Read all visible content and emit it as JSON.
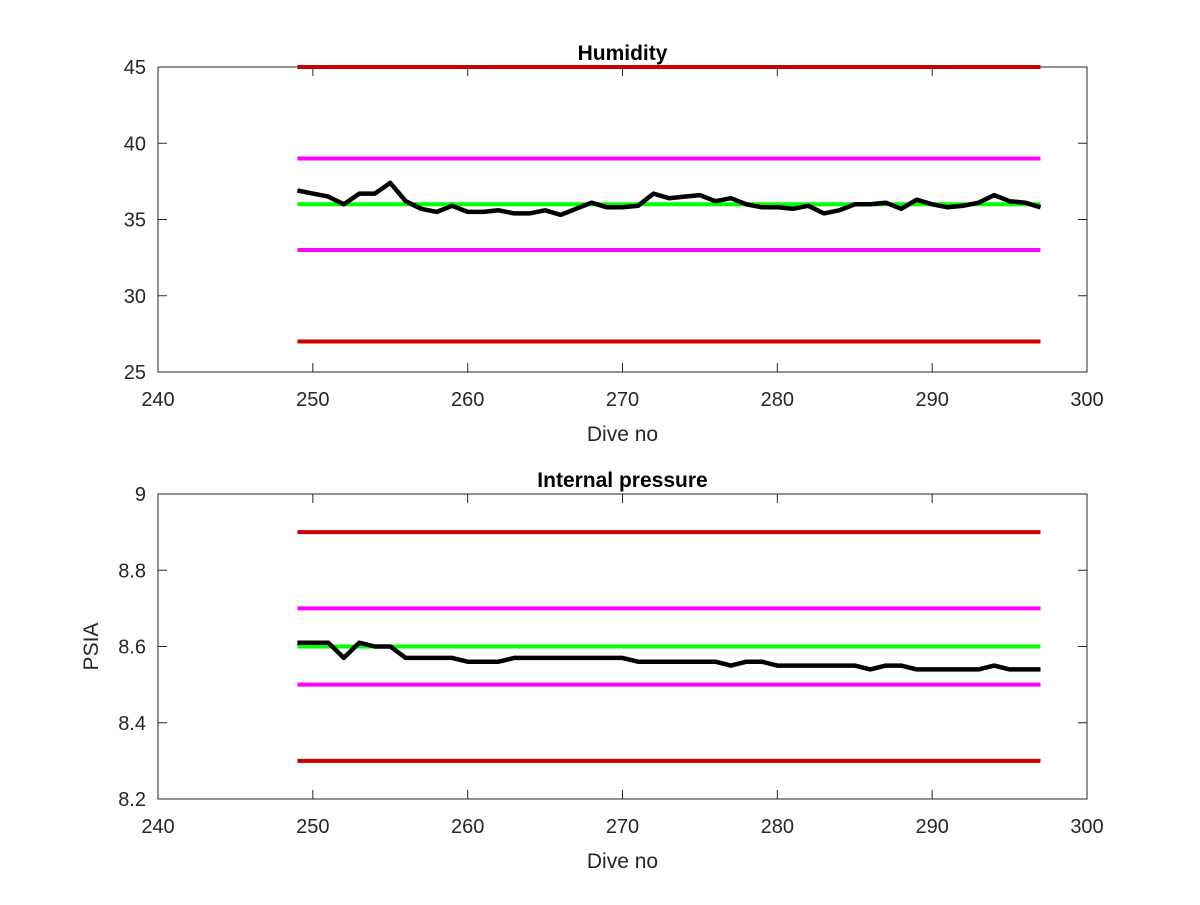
{
  "chart_data": [
    {
      "type": "line",
      "title": "Humidity",
      "xlabel": "Dive no",
      "ylabel": "",
      "xlim": [
        240,
        300
      ],
      "ylim": [
        25,
        45
      ],
      "xticks": [
        240,
        250,
        260,
        270,
        280,
        290,
        300
      ],
      "yticks": [
        25,
        30,
        35,
        40,
        45
      ],
      "grid": false,
      "legend": "none",
      "series": [
        {
          "color": "#000000",
          "x": [
            249,
            250,
            251,
            252,
            253,
            254,
            255,
            256,
            257,
            258,
            259,
            260,
            261,
            262,
            263,
            264,
            265,
            266,
            267,
            268,
            269,
            270,
            271,
            272,
            273,
            274,
            275,
            276,
            277,
            278,
            279,
            280,
            281,
            282,
            283,
            284,
            285,
            286,
            287,
            288,
            289,
            290,
            291,
            292,
            293,
            294,
            295,
            296,
            297
          ],
          "values": [
            36.9,
            36.7,
            36.5,
            36.0,
            36.7,
            36.7,
            37.4,
            36.2,
            35.7,
            35.5,
            35.9,
            35.5,
            35.5,
            35.6,
            35.4,
            35.4,
            35.6,
            35.3,
            35.7,
            36.1,
            35.8,
            35.8,
            35.9,
            36.7,
            36.4,
            36.5,
            36.6,
            36.2,
            36.4,
            36.0,
            35.8,
            35.8,
            35.7,
            35.9,
            35.4,
            35.6,
            36.0,
            36.0,
            36.1,
            35.7,
            36.3,
            36.0,
            35.8,
            35.9,
            36.1,
            36.6,
            36.2,
            36.1,
            35.8
          ]
        },
        {
          "color": "#00ff00",
          "x": [
            249,
            297
          ],
          "values": [
            36,
            36
          ]
        },
        {
          "color": "#ff00ff",
          "x": [
            249,
            297
          ],
          "values": [
            39,
            39
          ]
        },
        {
          "color": "#ff00ff",
          "x": [
            249,
            297
          ],
          "values": [
            33,
            33
          ]
        },
        {
          "color": "#cc0000",
          "x": [
            249,
            297
          ],
          "values": [
            45,
            45
          ]
        },
        {
          "color": "#cc0000",
          "x": [
            249,
            297
          ],
          "values": [
            27,
            27
          ]
        }
      ]
    },
    {
      "type": "line",
      "title": "Internal pressure",
      "xlabel": "Dive no",
      "ylabel": "PSIA",
      "xlim": [
        240,
        300
      ],
      "ylim": [
        8.2,
        9
      ],
      "xticks": [
        240,
        250,
        260,
        270,
        280,
        290,
        300
      ],
      "yticks": [
        8.2,
        8.4,
        8.6,
        8.8,
        9
      ],
      "grid": false,
      "legend": "none",
      "series": [
        {
          "color": "#000000",
          "x": [
            249,
            250,
            251,
            252,
            253,
            254,
            255,
            256,
            257,
            258,
            259,
            260,
            261,
            262,
            263,
            264,
            265,
            266,
            267,
            268,
            269,
            270,
            271,
            272,
            273,
            274,
            275,
            276,
            277,
            278,
            279,
            280,
            281,
            282,
            283,
            284,
            285,
            286,
            287,
            288,
            289,
            290,
            291,
            292,
            293,
            294,
            295,
            296,
            297
          ],
          "values": [
            8.61,
            8.61,
            8.61,
            8.57,
            8.61,
            8.6,
            8.6,
            8.57,
            8.57,
            8.57,
            8.57,
            8.56,
            8.56,
            8.56,
            8.57,
            8.57,
            8.57,
            8.57,
            8.57,
            8.57,
            8.57,
            8.57,
            8.56,
            8.56,
            8.56,
            8.56,
            8.56,
            8.56,
            8.55,
            8.56,
            8.56,
            8.55,
            8.55,
            8.55,
            8.55,
            8.55,
            8.55,
            8.54,
            8.55,
            8.55,
            8.54,
            8.54,
            8.54,
            8.54,
            8.54,
            8.55,
            8.54,
            8.54,
            8.54
          ]
        },
        {
          "color": "#00ff00",
          "x": [
            249,
            297
          ],
          "values": [
            8.6,
            8.6
          ]
        },
        {
          "color": "#ff00ff",
          "x": [
            249,
            297
          ],
          "values": [
            8.7,
            8.7
          ]
        },
        {
          "color": "#ff00ff",
          "x": [
            249,
            297
          ],
          "values": [
            8.5,
            8.5
          ]
        },
        {
          "color": "#cc0000",
          "x": [
            249,
            297
          ],
          "values": [
            8.9,
            8.9
          ]
        },
        {
          "color": "#cc0000",
          "x": [
            249,
            297
          ],
          "values": [
            8.3,
            8.3
          ]
        }
      ]
    }
  ]
}
